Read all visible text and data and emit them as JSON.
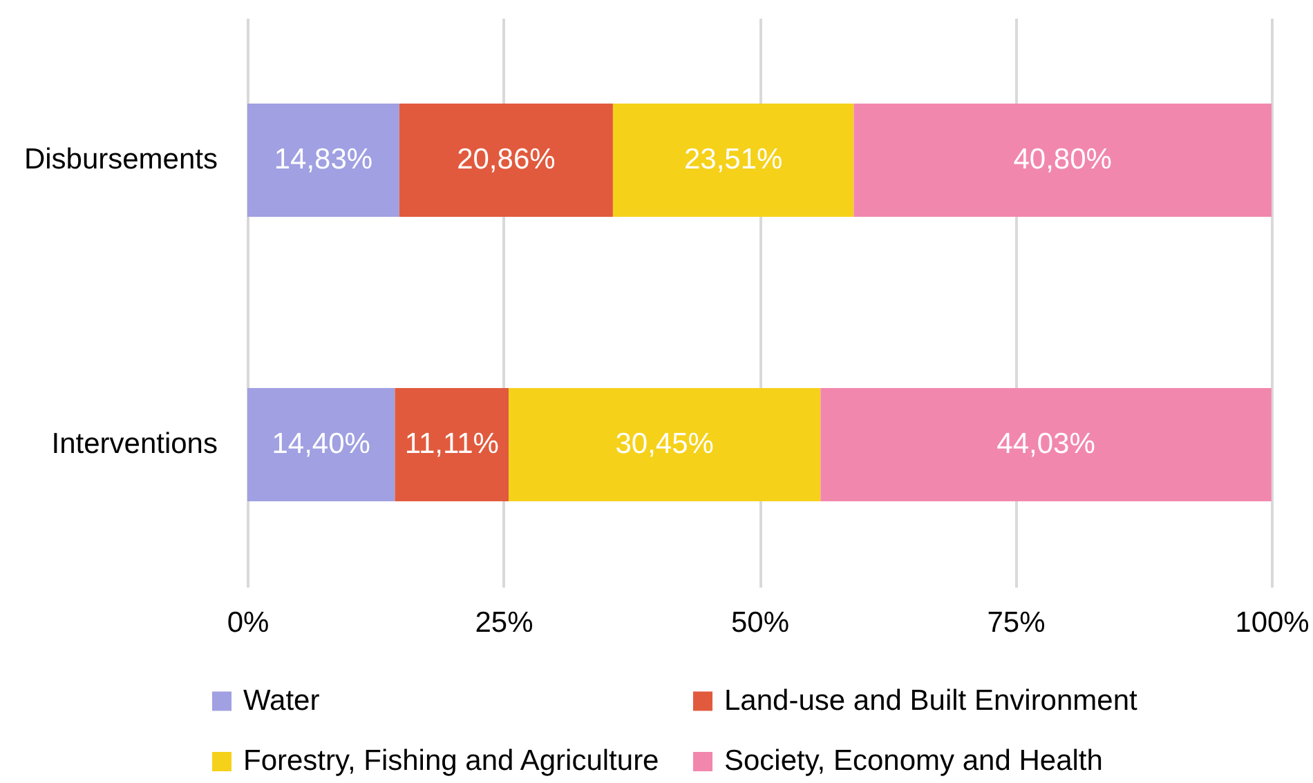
{
  "chart_data": {
    "type": "bar",
    "orientation": "horizontal",
    "stacked": true,
    "categories": [
      "Disbursements",
      "Interventions"
    ],
    "series": [
      {
        "name": "Water",
        "color": "#a0a0e2",
        "values": [
          14.83,
          14.4
        ],
        "value_labels": [
          "14,83%",
          "14,40%"
        ]
      },
      {
        "name": "Land-use and Built Environment",
        "color": "#e15a3e",
        "values": [
          20.86,
          11.11
        ],
        "value_labels": [
          "20,86%",
          "11,11%"
        ]
      },
      {
        "name": "Forestry, Fishing and Agriculture",
        "color": "#f5d11a",
        "values": [
          23.51,
          30.45
        ],
        "value_labels": [
          "23,51%",
          "30,45%"
        ]
      },
      {
        "name": "Society, Economy and Health",
        "color": "#f287ae",
        "values": [
          40.8,
          44.03
        ],
        "value_labels": [
          "40,80%",
          "44,03%"
        ]
      }
    ],
    "xlim": [
      0,
      100
    ],
    "xticks": [
      {
        "value": 0,
        "label": "0%"
      },
      {
        "value": 25,
        "label": "25%"
      },
      {
        "value": 50,
        "label": "50%"
      },
      {
        "value": 75,
        "label": "75%"
      },
      {
        "value": 100,
        "label": "100%"
      }
    ],
    "grid": "x",
    "legend": "bottom"
  }
}
